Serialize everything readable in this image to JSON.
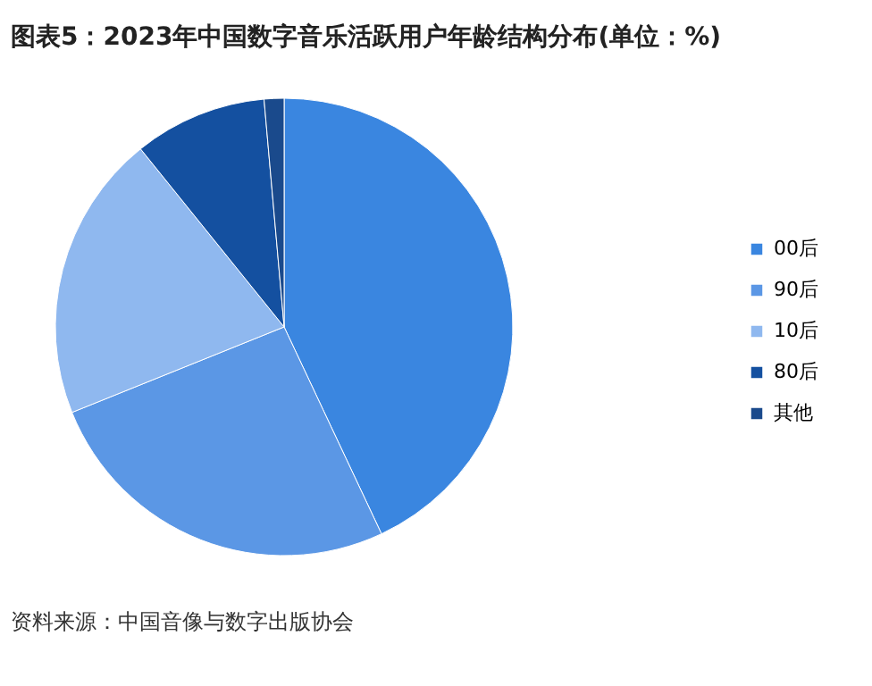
{
  "chart_data": {
    "type": "pie",
    "title": "图表5：2023年中国数字音乐活跃用户年龄结构分布(单位：%)",
    "categories": [
      "00后",
      "90后",
      "10后",
      "80后",
      "其他"
    ],
    "values": [
      43.0,
      25.9,
      20.3,
      9.4,
      1.4
    ],
    "colors": [
      "#3a86e0",
      "#5b97e5",
      "#8fb8ef",
      "#1450a0",
      "#1a4a8c"
    ],
    "legend": "right",
    "annotations": [
      "资料来源：中国音像与数字出版协会"
    ]
  }
}
